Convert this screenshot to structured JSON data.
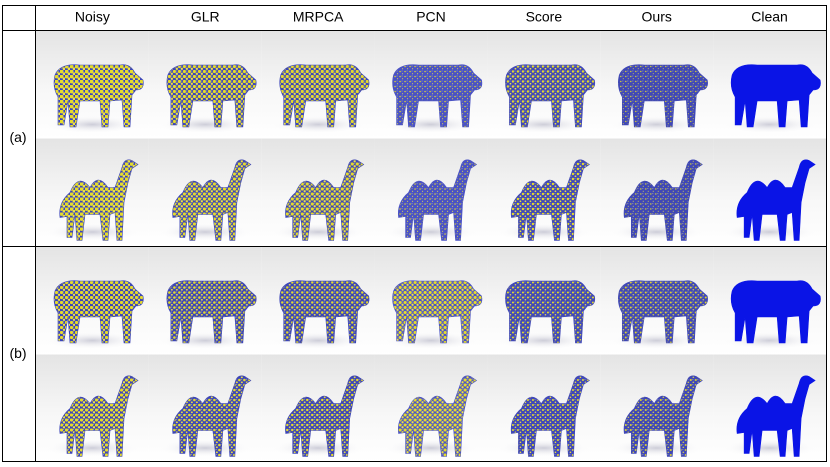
{
  "header": {
    "columns": [
      "Noisy",
      "GLR",
      "MRPCA",
      "PCN",
      "Score",
      "Ours",
      "Clean"
    ]
  },
  "rows": [
    {
      "label": "(a)"
    },
    {
      "label": "(b)"
    }
  ]
}
